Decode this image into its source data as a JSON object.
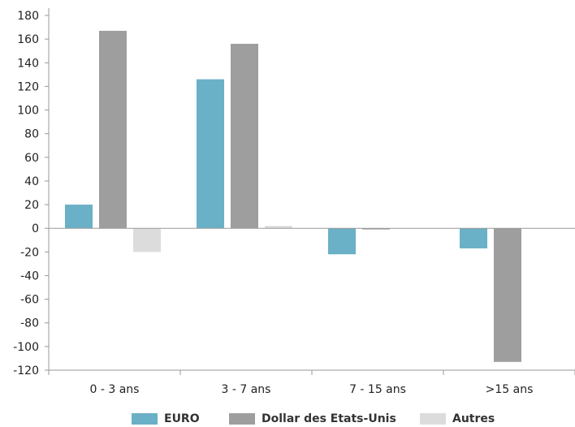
{
  "chart_data": {
    "type": "bar",
    "categories": [
      "0 - 3 ans",
      "3 - 7 ans",
      "7 - 15 ans",
      ">15 ans"
    ],
    "series": [
      {
        "name": "EURO",
        "color": "#6ab0c6",
        "values": [
          20,
          126,
          -22,
          -17
        ]
      },
      {
        "name": "Dollar des Etats-Unis",
        "color": "#9e9e9e",
        "values": [
          167,
          156,
          -1,
          -113
        ]
      },
      {
        "name": "Autres",
        "color": "#dcdcdc",
        "values": [
          -20,
          2,
          0,
          0
        ]
      }
    ],
    "ylim": [
      -120,
      180
    ],
    "yticks": [
      180,
      160,
      140,
      120,
      100,
      80,
      60,
      40,
      20,
      0,
      -20,
      -40,
      -60,
      -80,
      -100,
      -120
    ],
    "title": "",
    "xlabel": "",
    "ylabel": "",
    "grid": false,
    "legend_position": "bottom"
  }
}
